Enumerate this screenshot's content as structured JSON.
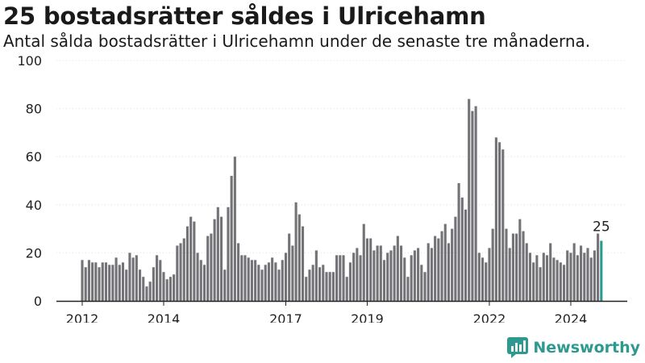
{
  "header": {
    "title": "25 bostadsrätter såldes i Ulricehamn",
    "subtitle": "Antal sålda bostadsrätter i Ulricehamn under de senaste tre månaderna."
  },
  "brand": {
    "name": "Newsworthy"
  },
  "colors": {
    "bar": "#737276",
    "highlight": "#2e9a8f",
    "axis": "#222222",
    "grid": "#dddddd"
  },
  "chart_data": {
    "type": "bar",
    "title": "25 bostadsrätter såldes i Ulricehamn",
    "subtitle": "Antal sålda bostadsrätter i Ulricehamn under de senaste tre månaderna.",
    "xlabel": "",
    "ylabel": "",
    "ylim": [
      0,
      100
    ],
    "yticks": [
      0,
      20,
      40,
      60,
      80,
      100
    ],
    "xticks": [
      {
        "label": "2012",
        "month": "2012-01"
      },
      {
        "label": "2014",
        "month": "2014-01"
      },
      {
        "label": "2017",
        "month": "2017-01"
      },
      {
        "label": "2019",
        "month": "2019-01"
      },
      {
        "label": "2022",
        "month": "2022-01"
      },
      {
        "label": "2024",
        "month": "2024-01"
      }
    ],
    "grid": true,
    "period_start": "2012-01",
    "values": [
      17,
      14,
      17,
      16,
      16,
      14,
      16,
      16,
      15,
      15,
      18,
      15,
      16,
      13,
      20,
      18,
      19,
      13,
      10,
      6,
      8,
      14,
      19,
      17,
      12,
      9,
      10,
      11,
      23,
      24,
      26,
      31,
      35,
      33,
      20,
      17,
      15,
      27,
      28,
      34,
      39,
      35,
      13,
      39,
      52,
      60,
      24,
      19,
      19,
      18,
      17,
      17,
      15,
      13,
      15,
      16,
      18,
      16,
      13,
      17,
      20,
      28,
      23,
      41,
      36,
      31,
      10,
      13,
      15,
      21,
      14,
      15,
      12,
      12,
      12,
      19,
      19,
      19,
      10,
      16,
      20,
      22,
      19,
      32,
      26,
      26,
      21,
      23,
      23,
      17,
      20,
      21,
      23,
      27,
      23,
      18,
      10,
      19,
      21,
      22,
      15,
      12,
      24,
      22,
      27,
      26,
      29,
      32,
      24,
      30,
      35,
      49,
      43,
      38,
      84,
      79,
      81,
      20,
      18,
      16,
      22,
      30,
      68,
      66,
      63,
      30,
      22,
      28,
      28,
      34,
      29,
      24,
      20,
      16,
      19,
      14,
      20,
      19,
      24,
      18,
      17,
      16,
      15,
      21,
      20,
      24,
      19,
      23,
      20,
      22,
      18,
      21,
      28,
      25
    ],
    "highlight": {
      "index": 153,
      "label": "25"
    }
  }
}
